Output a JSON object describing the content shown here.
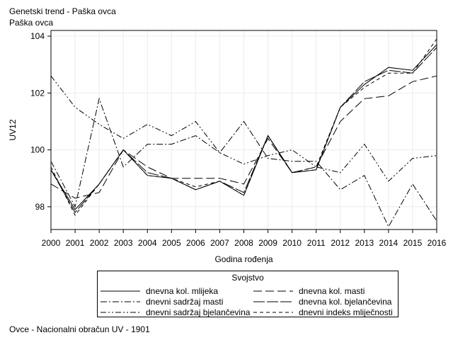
{
  "header": {
    "title": "Genetski trend - Paška ovca",
    "subtitle": "Paška ovca"
  },
  "footnote": "Ovce - Nacionalni obračun UV - 1901",
  "chart_data": {
    "type": "line",
    "title": "Genetski trend - Paška ovca",
    "subtitle": "Paška ovca",
    "xlabel": "Godina rođenja",
    "ylabel": "UV12",
    "x": [
      2000,
      2001,
      2002,
      2003,
      2004,
      2005,
      2006,
      2007,
      2008,
      2009,
      2010,
      2011,
      2012,
      2013,
      2014,
      2015,
      2016
    ],
    "xlim": [
      2000,
      2016
    ],
    "ylim": [
      97.2,
      104.2
    ],
    "yticks": [
      98,
      100,
      102,
      104
    ],
    "grid": true,
    "legend": {
      "title": "Svojstvo",
      "placement": "bottom"
    },
    "series": [
      {
        "name": "dnevna kol. mlijeka",
        "dash": "solid",
        "values": [
          99.3,
          97.9,
          98.8,
          100.0,
          99.1,
          99.0,
          98.6,
          98.9,
          98.4,
          100.5,
          99.2,
          99.3,
          101.5,
          102.3,
          102.9,
          102.8,
          103.7
        ]
      },
      {
        "name": "dnevna kol. masti",
        "dash": "longdash",
        "values": [
          98.8,
          98.3,
          98.5,
          100.0,
          99.4,
          99.0,
          99.0,
          99.0,
          98.8,
          100.4,
          99.2,
          99.4,
          101.0,
          101.8,
          101.9,
          102.4,
          102.6
        ]
      },
      {
        "name": "dnevni sadržaj masti",
        "dash": "dashdot",
        "values": [
          99.6,
          98.0,
          101.8,
          99.4,
          100.2,
          100.2,
          100.5,
          99.9,
          101.0,
          99.7,
          99.6,
          99.6,
          98.6,
          99.1,
          97.3,
          98.8,
          97.5
        ]
      },
      {
        "name": "dnevna kol. bjelančevina",
        "dash": "longdashsolid",
        "values": [
          99.3,
          97.8,
          98.8,
          100.0,
          99.2,
          99.0,
          98.6,
          98.9,
          98.5,
          100.5,
          99.2,
          99.3,
          101.5,
          102.4,
          102.8,
          102.7,
          103.6
        ]
      },
      {
        "name": "dnevni sadržaj bjelančevina",
        "dash": "dashdotdot",
        "values": [
          102.6,
          101.5,
          100.9,
          100.4,
          100.9,
          100.5,
          101.0,
          99.9,
          99.5,
          99.8,
          100.0,
          99.4,
          99.2,
          100.2,
          98.9,
          99.7,
          99.8
        ]
      },
      {
        "name": "dnevni indeks mliječnosti",
        "dash": "dash",
        "values": [
          99.4,
          97.7,
          98.8,
          100.0,
          99.1,
          99.0,
          98.7,
          98.9,
          98.4,
          100.5,
          99.2,
          99.4,
          101.5,
          102.2,
          102.7,
          102.7,
          103.9
        ]
      }
    ]
  }
}
